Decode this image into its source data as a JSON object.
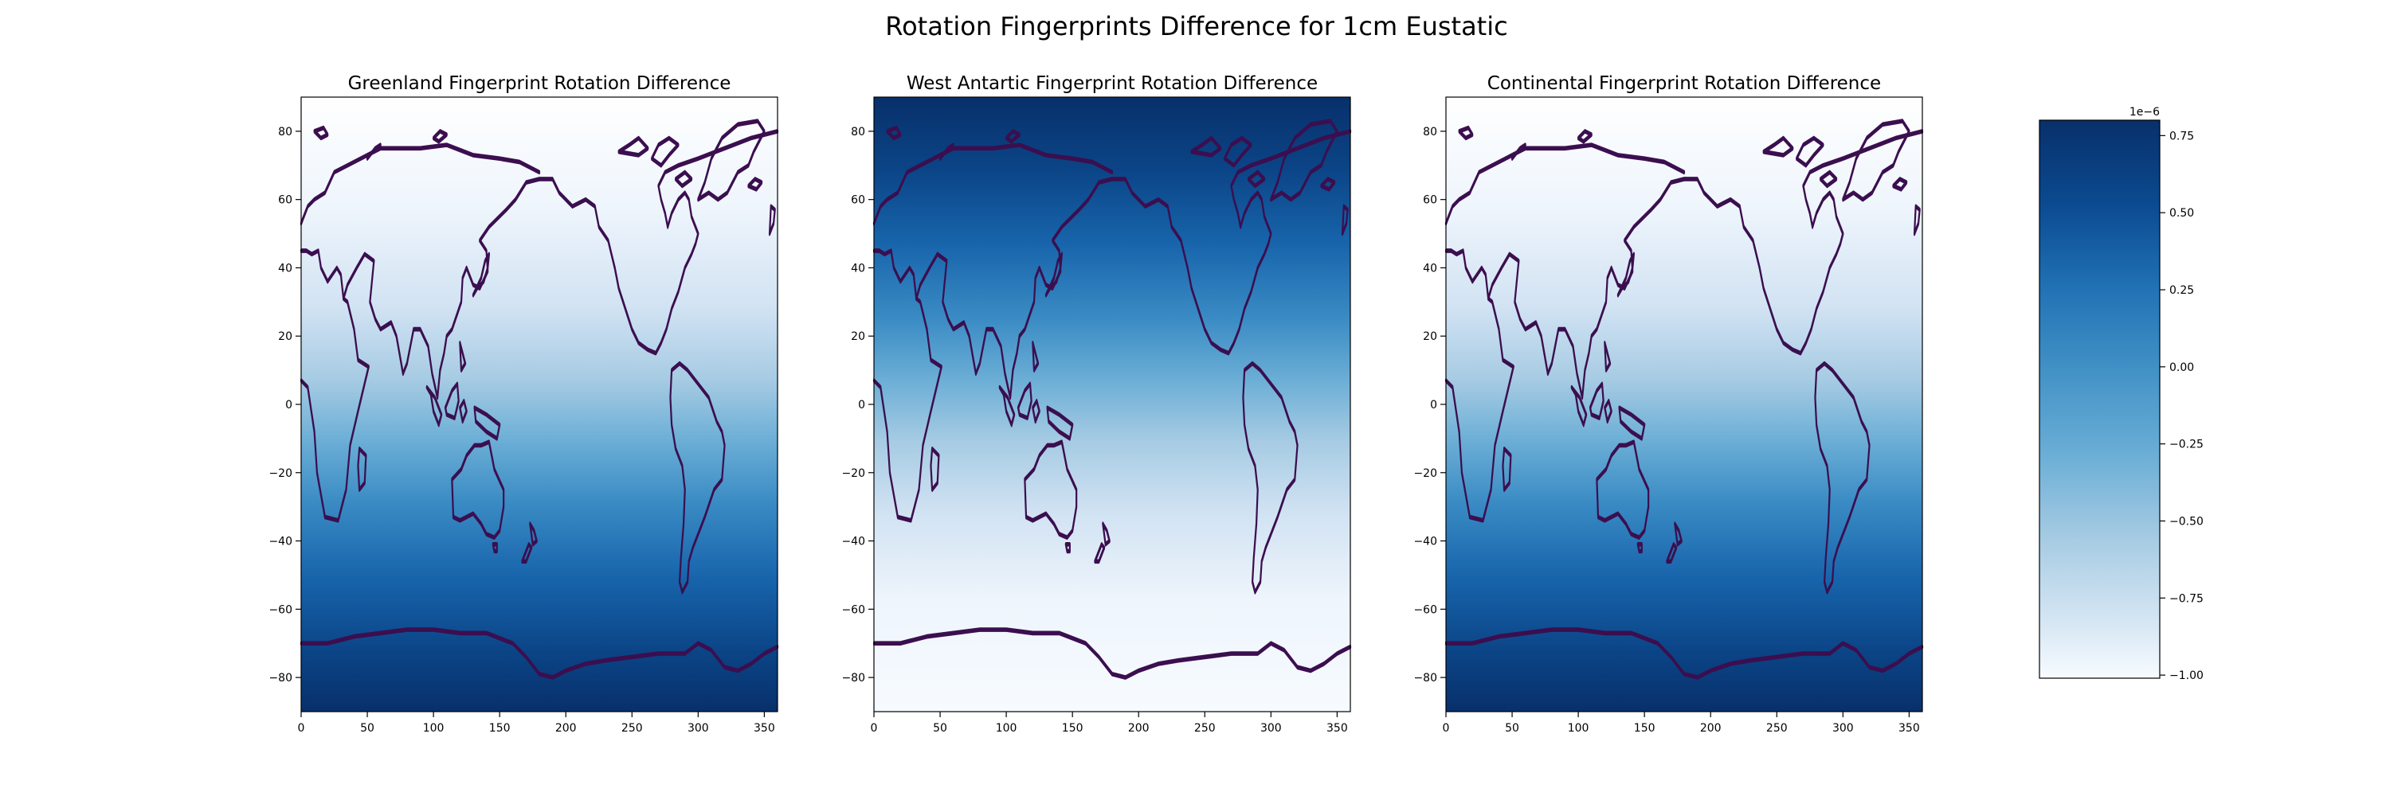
{
  "figure_title": "Rotation Fingerprints Difference for 1cm Eustatic",
  "chart_data": [
    {
      "type": "heatmap",
      "title": "Greenland Fingerprint Rotation Difference",
      "xlim": [
        0,
        360
      ],
      "ylim": [
        -90,
        90
      ],
      "xticks": [
        0,
        50,
        100,
        150,
        200,
        250,
        300,
        350
      ],
      "yticks": [
        -80,
        -60,
        -40,
        -20,
        0,
        20,
        40,
        60,
        80
      ],
      "colormap": "Blues",
      "field": "darker toward south pole, lightest near north pole",
      "grid": false
    },
    {
      "type": "heatmap",
      "title": "West Antartic Fingerprint Rotation Difference",
      "xlim": [
        0,
        360
      ],
      "ylim": [
        -90,
        90
      ],
      "xticks": [
        0,
        50,
        100,
        150,
        200,
        250,
        300,
        350
      ],
      "yticks": [
        -80,
        -60,
        -40,
        -20,
        0,
        20,
        40,
        60,
        80
      ],
      "colormap": "Blues",
      "field": "darker toward north pole, lightest near south pole",
      "grid": false
    },
    {
      "type": "heatmap",
      "title": "Continental Fingerprint Rotation Difference",
      "xlim": [
        0,
        360
      ],
      "ylim": [
        -90,
        90
      ],
      "xticks": [
        0,
        50,
        100,
        150,
        200,
        250,
        300,
        350
      ],
      "yticks": [
        -80,
        -60,
        -40,
        -20,
        0,
        20,
        40,
        60,
        80
      ],
      "colormap": "Blues",
      "field": "darker toward south pole, lightest near north pole",
      "grid": false
    }
  ],
  "colorbar": {
    "multiplier_label": "1e−6",
    "ticks": [
      0.75,
      0.5,
      0.25,
      0.0,
      -0.25,
      -0.5,
      -0.75,
      -1.0
    ],
    "tick_labels": [
      "0.75",
      "0.50",
      "0.25",
      "0.00",
      "−0.25",
      "−0.50",
      "−0.75",
      "−1.00"
    ],
    "range": [
      -1.01,
      0.8
    ],
    "colormap": "Blues"
  },
  "colors": {
    "coastline": "#3b0f4f",
    "blues_light": "#f7fbff",
    "blues_mid": "#6baed6",
    "blues_dark": "#08306b"
  }
}
